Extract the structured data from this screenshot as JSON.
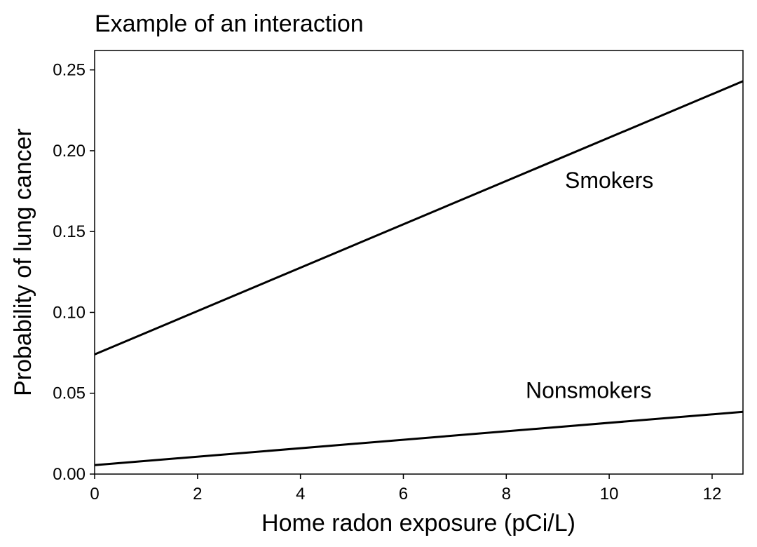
{
  "chart_data": {
    "type": "line",
    "title": "Example of an interaction",
    "xlabel": "Home radon exposure (pCi/L)",
    "ylabel": "Probability of lung cancer",
    "xlim": [
      0,
      12.6
    ],
    "ylim": [
      0,
      0.262
    ],
    "grid": false,
    "x_ticks": [
      0,
      2,
      4,
      6,
      8,
      10,
      12
    ],
    "x_tick_labels": [
      "0",
      "2",
      "4",
      "6",
      "8",
      "10",
      "12"
    ],
    "y_ticks": [
      0,
      0.05,
      0.1,
      0.15,
      0.2,
      0.25
    ],
    "y_tick_labels": [
      "0.00",
      "0.05",
      "0.10",
      "0.15",
      "0.20",
      "0.25"
    ],
    "series": [
      {
        "name": "Smokers",
        "x": [
          0,
          12.6
        ],
        "y": [
          0.074,
          0.243
        ]
      },
      {
        "name": "Nonsmokers",
        "x": [
          0,
          12.6
        ],
        "y": [
          0.0055,
          0.0385
        ]
      }
    ],
    "annotations": [
      {
        "text": "Smokers",
        "x": 10.0,
        "y": 0.177
      },
      {
        "text": "Nonsmokers",
        "x": 9.6,
        "y": 0.047
      }
    ]
  }
}
